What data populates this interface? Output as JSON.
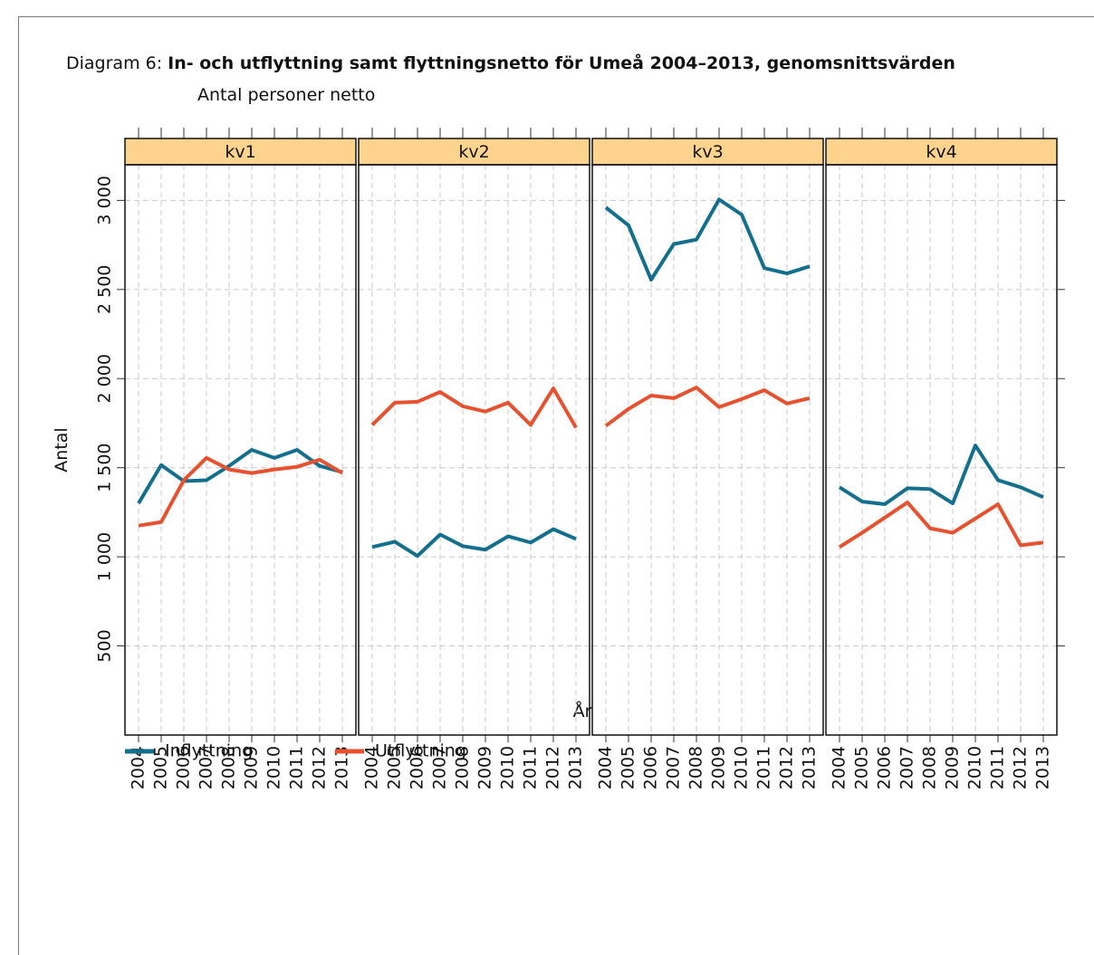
{
  "chart_data": {
    "type": "line",
    "title_prefix": "Diagram 6:",
    "title": "In- och utflyttning samt flyttningsnetto för Umeå 2004–2013, genomsnittsvärden",
    "subtitle": "Antal personer netto",
    "ylabel": "Antal",
    "xlabel": "År",
    "x": [
      2004,
      2005,
      2006,
      2007,
      2008,
      2009,
      2010,
      2011,
      2012,
      2013
    ],
    "xlim": [
      2003.4,
      2013.6
    ],
    "xticks": [
      2004,
      2005,
      2006,
      2007,
      2008,
      2009,
      2010,
      2011,
      2012,
      2013
    ],
    "ylim": [
      0,
      3200
    ],
    "yticks": [
      500,
      {
        "value": 1000,
        "label": "1 000"
      },
      {
        "value": 1500,
        "label": "1 500"
      },
      {
        "value": 2000,
        "label": "2 000"
      },
      {
        "value": 2500,
        "label": "2 500"
      },
      {
        "value": 3000,
        "label": "3 000"
      }
    ],
    "grid": true,
    "legend": "bottom-left",
    "panels": [
      {
        "name": "kv1",
        "series": [
          {
            "name": "Inflyttning",
            "color": "#136f8e",
            "values": [
              1300,
              1515,
              1425,
              1430,
              1510,
              1600,
              1555,
              1600,
              1510,
              1475
            ]
          },
          {
            "name": "Utflyttning",
            "color": "#e8502e",
            "values": [
              1175,
              1195,
              1430,
              1555,
              1490,
              1470,
              1490,
              1505,
              1545,
              1470
            ]
          }
        ]
      },
      {
        "name": "kv2",
        "series": [
          {
            "name": "Inflyttning",
            "color": "#136f8e",
            "values": [
              1055,
              1085,
              1005,
              1125,
              1060,
              1040,
              1115,
              1080,
              1155,
              1100
            ]
          },
          {
            "name": "Utflyttning",
            "color": "#e8502e",
            "values": [
              1740,
              1865,
              1870,
              1925,
              1845,
              1815,
              1865,
              1740,
              1945,
              1725
            ]
          }
        ]
      },
      {
        "name": "kv3",
        "series": [
          {
            "name": "Inflyttning",
            "color": "#136f8e",
            "values": [
              2960,
              2860,
              2555,
              2755,
              2780,
              3005,
              2920,
              2620,
              2590,
              2630
            ]
          },
          {
            "name": "Utflyttning",
            "color": "#e8502e",
            "values": [
              1735,
              1830,
              1905,
              1890,
              1950,
              1840,
              1885,
              1935,
              1860,
              1890
            ]
          }
        ]
      },
      {
        "name": "kv4",
        "series": [
          {
            "name": "Inflyttning",
            "color": "#136f8e",
            "values": [
              1390,
              1310,
              1295,
              1385,
              1380,
              1300,
              1625,
              1430,
              1390,
              1335
            ]
          },
          {
            "name": "Utflyttning",
            "color": "#e8502e",
            "values": [
              1055,
              1135,
              1220,
              1305,
              1160,
              1135,
              1215,
              1295,
              1065,
              1080
            ]
          }
        ]
      }
    ]
  }
}
